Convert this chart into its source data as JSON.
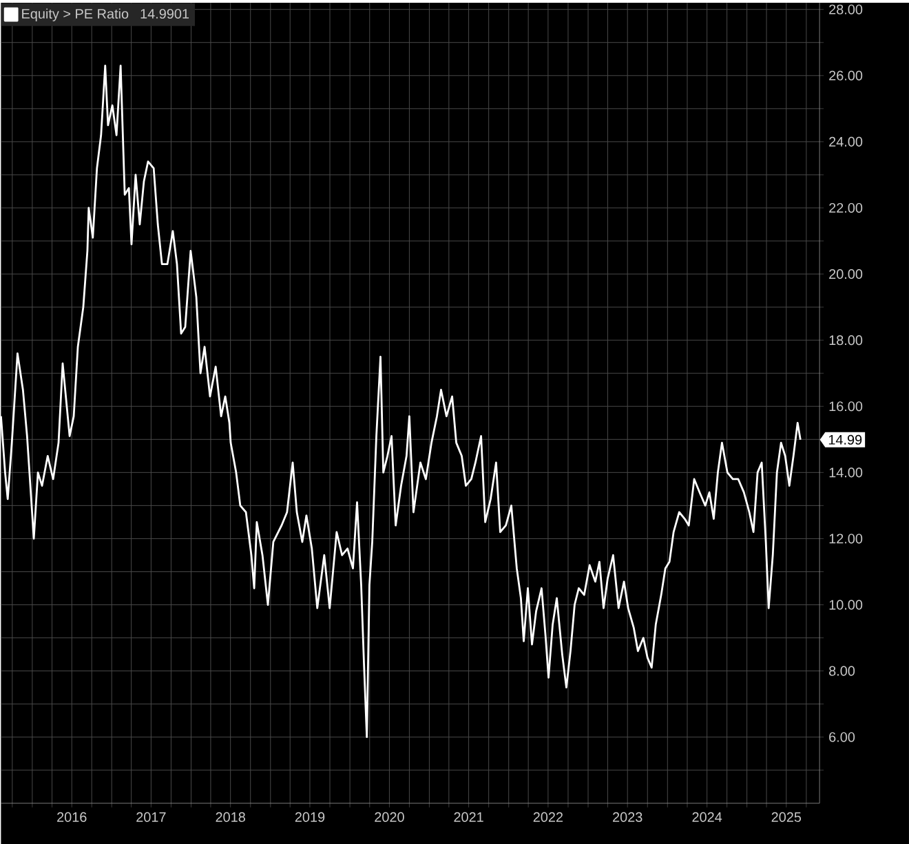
{
  "chart_data": {
    "type": "line",
    "x": [
      "2015-08-10",
      "2015-08-29",
      "2015-09-10",
      "2015-09-29",
      "2015-10-25",
      "2015-11-19",
      "2015-12-08",
      "2015-12-27",
      "2016-01-08",
      "2016-01-27",
      "2016-02-15",
      "2016-03-12",
      "2016-04-06",
      "2016-05-01",
      "2016-05-20",
      "2016-06-21",
      "2016-07-10",
      "2016-07-29",
      "2016-08-23",
      "2016-09-11",
      "2016-09-17",
      "2016-10-06",
      "2016-10-25",
      "2016-11-13",
      "2016-12-02",
      "2016-12-15",
      "2017-01-04",
      "2017-01-23",
      "2017-02-11",
      "2017-03-02",
      "2017-03-21",
      "2017-04-02",
      "2017-04-21",
      "2017-05-10",
      "2017-05-29",
      "2017-06-17",
      "2017-07-13",
      "2017-08-01",
      "2017-08-20",
      "2017-09-14",
      "2017-10-09",
      "2017-10-28",
      "2017-11-16",
      "2017-12-05",
      "2017-12-30",
      "2018-01-25",
      "2018-02-13",
      "2018-03-04",
      "2018-03-29",
      "2018-04-24",
      "2018-05-19",
      "2018-06-07",
      "2018-06-26",
      "2018-07-02",
      "2018-07-27",
      "2018-08-15",
      "2018-09-10",
      "2018-10-05",
      "2018-10-18",
      "2018-10-30",
      "2018-11-25",
      "2018-12-20",
      "2019-01-14",
      "2019-02-21",
      "2019-03-18",
      "2019-04-13",
      "2019-05-02",
      "2019-05-27",
      "2019-06-15",
      "2019-07-10",
      "2019-08-04",
      "2019-09-05",
      "2019-09-30",
      "2019-11-01",
      "2019-11-26",
      "2019-12-21",
      "2020-01-15",
      "2020-02-03",
      "2020-02-22",
      "2020-03-06",
      "2020-03-19",
      "2020-03-31",
      "2020-04-13",
      "2020-05-02",
      "2020-05-21",
      "2020-06-03",
      "2020-06-22",
      "2020-07-11",
      "2020-07-30",
      "2020-08-24",
      "2020-09-18",
      "2020-10-01",
      "2020-10-20",
      "2020-11-21",
      "2020-12-16",
      "2021-01-11",
      "2021-02-05",
      "2021-02-24",
      "2021-03-21",
      "2021-04-16",
      "2021-05-05",
      "2021-05-30",
      "2021-06-18",
      "2021-07-13",
      "2021-08-01",
      "2021-08-27",
      "2021-09-15",
      "2021-10-10",
      "2021-11-04",
      "2021-11-23",
      "2021-12-19",
      "2022-01-13",
      "2022-02-07",
      "2022-02-26",
      "2022-03-11",
      "2022-03-30",
      "2022-04-18",
      "2022-05-07",
      "2022-06-01",
      "2022-06-20",
      "2022-07-03",
      "2022-07-22",
      "2022-08-10",
      "2022-09-04",
      "2022-09-23",
      "2022-10-12",
      "2022-10-31",
      "2022-11-19",
      "2022-12-14",
      "2023-01-08",
      "2023-02-03",
      "2023-02-22",
      "2023-03-13",
      "2023-04-01",
      "2023-04-26",
      "2023-05-21",
      "2023-06-15",
      "2023-07-04",
      "2023-07-30",
      "2023-08-18",
      "2023-09-12",
      "2023-10-01",
      "2023-10-20",
      "2023-11-08",
      "2023-12-03",
      "2023-12-22",
      "2024-01-10",
      "2024-01-29",
      "2024-02-24",
      "2024-03-20",
      "2024-04-08",
      "2024-05-03",
      "2024-05-28",
      "2024-06-23",
      "2024-07-12",
      "2024-08-01",
      "2024-08-20",
      "2024-09-08",
      "2024-10-03",
      "2024-10-28",
      "2024-11-22",
      "2024-12-18",
      "2025-01-12",
      "2025-01-31",
      "2025-02-19",
      "2025-03-10",
      "2025-03-29",
      "2025-04-11",
      "2025-04-30",
      "2025-05-19",
      "2025-06-07",
      "2025-06-26",
      "2025-07-15",
      "2025-08-03",
      "2025-08-22",
      "2025-09-04"
    ],
    "series": [
      {
        "name": "Equity > PE Ratio",
        "color": "#ffffff",
        "values": [
          15.7,
          14.0,
          13.2,
          14.9,
          17.6,
          16.5,
          15.1,
          13.2,
          12.0,
          14.0,
          13.6,
          14.5,
          13.8,
          14.9,
          17.3,
          15.1,
          15.7,
          17.8,
          19.0,
          20.7,
          22.0,
          21.1,
          23.2,
          24.2,
          26.3,
          24.5,
          25.1,
          24.2,
          26.3,
          22.4,
          22.6,
          20.9,
          23.0,
          21.5,
          22.8,
          23.4,
          23.2,
          21.5,
          20.3,
          20.3,
          21.3,
          20.3,
          18.2,
          18.4,
          20.7,
          19.3,
          17.0,
          17.8,
          16.3,
          17.2,
          15.7,
          16.3,
          15.5,
          14.9,
          14.0,
          13.0,
          12.8,
          11.5,
          10.5,
          12.5,
          11.5,
          10.0,
          11.9,
          12.4,
          12.8,
          14.3,
          12.8,
          11.9,
          12.7,
          11.7,
          9.9,
          11.5,
          9.9,
          12.2,
          11.5,
          11.7,
          11.1,
          13.1,
          10.6,
          8.2,
          6.0,
          10.6,
          11.9,
          15.1,
          17.5,
          14.0,
          14.5,
          15.1,
          12.4,
          13.6,
          14.5,
          15.7,
          12.8,
          14.3,
          13.8,
          14.9,
          15.7,
          16.5,
          15.7,
          16.3,
          14.9,
          14.5,
          13.6,
          13.8,
          14.3,
          15.1,
          12.5,
          13.2,
          14.3,
          12.2,
          12.4,
          13.0,
          11.1,
          10.2,
          8.9,
          10.5,
          8.8,
          9.8,
          10.5,
          9.0,
          7.8,
          9.4,
          10.2,
          8.5,
          7.5,
          8.6,
          10.0,
          10.5,
          10.3,
          11.2,
          10.7,
          11.3,
          9.9,
          10.8,
          11.5,
          9.9,
          10.7,
          9.9,
          9.3,
          8.6,
          9.0,
          8.4,
          8.1,
          9.4,
          10.3,
          11.1,
          11.3,
          12.2,
          12.8,
          12.6,
          12.4,
          13.8,
          13.4,
          13.0,
          13.4,
          12.6,
          14.0,
          14.9,
          14.0,
          13.8,
          13.8,
          13.4,
          12.8,
          12.2,
          14.0,
          14.3,
          11.9,
          9.9,
          11.5,
          14.0,
          14.9,
          14.5,
          13.6,
          14.5,
          15.5,
          14.99
        ]
      }
    ],
    "annotations": [
      "14.9901",
      "14.99"
    ],
    "xlim": [
      "2015-08-10",
      "2025-12-01"
    ],
    "xticks": [
      {
        "value": "2015-10",
        "label": null
      },
      {
        "value": "2016-01",
        "label": null
      },
      {
        "value": "2016-04",
        "label": null
      },
      {
        "value": "2016-07",
        "label": "2016"
      },
      {
        "value": "2016-10",
        "label": null
      },
      {
        "value": "2017-01",
        "label": null
      },
      {
        "value": "2017-04",
        "label": null
      },
      {
        "value": "2017-07",
        "label": "2017"
      },
      {
        "value": "2017-10",
        "label": null
      },
      {
        "value": "2018-01",
        "label": null
      },
      {
        "value": "2018-04",
        "label": null
      },
      {
        "value": "2018-07",
        "label": "2018"
      },
      {
        "value": "2018-10",
        "label": null
      },
      {
        "value": "2019-01",
        "label": null
      },
      {
        "value": "2019-04",
        "label": null
      },
      {
        "value": "2019-07",
        "label": "2019"
      },
      {
        "value": "2019-10",
        "label": null
      },
      {
        "value": "2020-01",
        "label": null
      },
      {
        "value": "2020-04",
        "label": null
      },
      {
        "value": "2020-07",
        "label": "2020"
      },
      {
        "value": "2020-10",
        "label": null
      },
      {
        "value": "2021-01",
        "label": null
      },
      {
        "value": "2021-04",
        "label": null
      },
      {
        "value": "2021-07",
        "label": "2021"
      },
      {
        "value": "2021-10",
        "label": null
      },
      {
        "value": "2022-01",
        "label": null
      },
      {
        "value": "2022-04",
        "label": null
      },
      {
        "value": "2022-07",
        "label": "2022"
      },
      {
        "value": "2022-10",
        "label": null
      },
      {
        "value": "2023-01",
        "label": null
      },
      {
        "value": "2023-04",
        "label": null
      },
      {
        "value": "2023-07",
        "label": "2023"
      },
      {
        "value": "2023-10",
        "label": null
      },
      {
        "value": "2024-01",
        "label": null
      },
      {
        "value": "2024-04",
        "label": null
      },
      {
        "value": "2024-07",
        "label": "2024"
      },
      {
        "value": "2024-10",
        "label": null
      },
      {
        "value": "2025-01",
        "label": null
      },
      {
        "value": "2025-04",
        "label": null
      },
      {
        "value": "2025-07",
        "label": "2025"
      },
      {
        "value": "2025-10",
        "label": null
      }
    ],
    "ylim": [
      4,
      28.2
    ],
    "yticks": [
      {
        "value": 5,
        "label": null
      },
      {
        "value": 6,
        "label": "6.00"
      },
      {
        "value": 7,
        "label": null
      },
      {
        "value": 8,
        "label": "8.00"
      },
      {
        "value": 9,
        "label": null
      },
      {
        "value": 10,
        "label": "10.00"
      },
      {
        "value": 11,
        "label": null
      },
      {
        "value": 12,
        "label": "12.00"
      },
      {
        "value": 13,
        "label": null
      },
      {
        "value": 14,
        "label": "14.00"
      },
      {
        "value": 15,
        "label": null
      },
      {
        "value": 16,
        "label": "16.00"
      },
      {
        "value": 17,
        "label": null
      },
      {
        "value": 18,
        "label": "18.00"
      },
      {
        "value": 19,
        "label": null
      },
      {
        "value": 20,
        "label": "20.00"
      },
      {
        "value": 21,
        "label": null
      },
      {
        "value": 22,
        "label": "22.00"
      },
      {
        "value": 23,
        "label": null
      },
      {
        "value": 24,
        "label": "24.00"
      },
      {
        "value": 25,
        "label": null
      },
      {
        "value": 26,
        "label": "26.00"
      },
      {
        "value": 27,
        "label": null
      },
      {
        "value": 28,
        "label": "28.00"
      }
    ],
    "grid": true,
    "legend": "top left",
    "marker": "none",
    "line_style": "solid"
  }
}
